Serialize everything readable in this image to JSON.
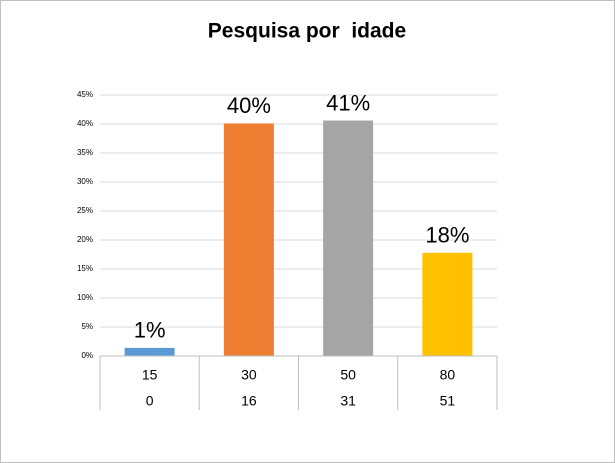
{
  "chart_data": {
    "type": "bar",
    "title": "Pesquisa por  idade",
    "categories": [
      [
        "15",
        "0"
      ],
      [
        "30",
        "16"
      ],
      [
        "50",
        "31"
      ],
      [
        "80",
        "51"
      ]
    ],
    "values": [
      1.4,
      40.1,
      40.6,
      17.8
    ],
    "value_labels": [
      "1%",
      "40%",
      "41%",
      "18%"
    ],
    "colors": [
      "#5b9bd5",
      "#ed7d31",
      "#a5a5a5",
      "#ffc000"
    ],
    "ylim": [
      0,
      45
    ],
    "yticks": [
      {
        "value": 0,
        "label": "0%"
      },
      {
        "value": 5,
        "label": "5%"
      },
      {
        "value": 10,
        "label": "10%"
      },
      {
        "value": 15,
        "label": "15%"
      },
      {
        "value": 20,
        "label": "20%"
      },
      {
        "value": 25,
        "label": "25%"
      },
      {
        "value": 30,
        "label": "30%"
      },
      {
        "value": 35,
        "label": "35%"
      },
      {
        "value": 40,
        "label": "40%"
      },
      {
        "value": 45,
        "label": "45%"
      }
    ],
    "grid": true
  }
}
